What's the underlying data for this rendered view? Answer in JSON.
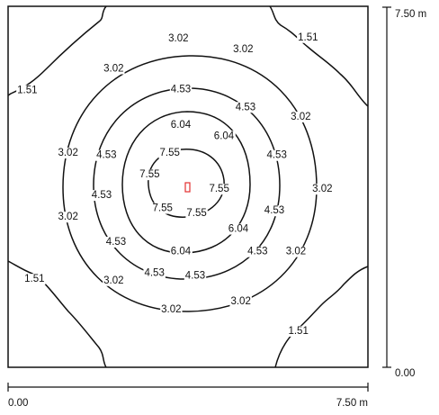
{
  "diagram": {
    "type": "isoline-plot",
    "room": {
      "width_m": 7.5,
      "depth_m": 7.5
    },
    "x_axis": {
      "start": "0.00",
      "end": "7.50 m"
    },
    "y_axis": {
      "bottom": "0.00",
      "top": "7.50 m"
    },
    "light_source": {
      "x_m": 3.75,
      "y_m": 3.75,
      "color": "#e23030"
    },
    "isolines": [
      {
        "id": "c7",
        "value": "7.55",
        "labels": [
          {
            "text": "7.55",
            "x_m": 3.37,
            "y_m": 4.45
          },
          {
            "text": "7.55",
            "x_m": 2.95,
            "y_m": 4.0
          },
          {
            "text": "7.55",
            "x_m": 4.4,
            "y_m": 3.7
          },
          {
            "text": "7.55",
            "x_m": 3.22,
            "y_m": 3.3
          },
          {
            "text": "7.55",
            "x_m": 3.93,
            "y_m": 3.2
          }
        ]
      },
      {
        "id": "c6",
        "value": "6.04",
        "labels": [
          {
            "text": "6.04",
            "x_m": 3.6,
            "y_m": 5.03
          },
          {
            "text": "6.04",
            "x_m": 4.5,
            "y_m": 4.8
          },
          {
            "text": "6.04",
            "x_m": 4.8,
            "y_m": 2.87
          },
          {
            "text": "6.04",
            "x_m": 3.6,
            "y_m": 2.4
          }
        ]
      },
      {
        "id": "c4",
        "value": "4.53",
        "labels": [
          {
            "text": "4.53",
            "x_m": 3.6,
            "y_m": 5.77
          },
          {
            "text": "4.53",
            "x_m": 4.95,
            "y_m": 5.4
          },
          {
            "text": "4.53",
            "x_m": 2.05,
            "y_m": 4.4
          },
          {
            "text": "4.53",
            "x_m": 5.6,
            "y_m": 4.4
          },
          {
            "text": "4.53",
            "x_m": 1.95,
            "y_m": 3.57
          },
          {
            "text": "4.53",
            "x_m": 5.55,
            "y_m": 3.25
          },
          {
            "text": "4.53",
            "x_m": 2.25,
            "y_m": 2.6
          },
          {
            "text": "4.53",
            "x_m": 5.2,
            "y_m": 2.4
          },
          {
            "text": "4.53",
            "x_m": 3.05,
            "y_m": 1.95
          },
          {
            "text": "4.53",
            "x_m": 3.9,
            "y_m": 1.9
          }
        ]
      },
      {
        "id": "c3",
        "value": "3.02",
        "labels": [
          {
            "text": "3.02",
            "x_m": 3.55,
            "y_m": 6.83
          },
          {
            "text": "3.02",
            "x_m": 4.9,
            "y_m": 6.6
          },
          {
            "text": "3.02",
            "x_m": 2.2,
            "y_m": 6.2
          },
          {
            "text": "3.02",
            "x_m": 6.1,
            "y_m": 5.2
          },
          {
            "text": "3.02",
            "x_m": 1.25,
            "y_m": 4.45
          },
          {
            "text": "3.02",
            "x_m": 6.55,
            "y_m": 3.7
          },
          {
            "text": "3.02",
            "x_m": 1.25,
            "y_m": 3.12
          },
          {
            "text": "3.02",
            "x_m": 6.0,
            "y_m": 2.4
          },
          {
            "text": "3.02",
            "x_m": 2.2,
            "y_m": 1.8
          },
          {
            "text": "3.02",
            "x_m": 4.85,
            "y_m": 1.37
          },
          {
            "text": "3.02",
            "x_m": 3.4,
            "y_m": 1.2
          }
        ]
      },
      {
        "id": "c1",
        "value": "1.51",
        "labels": [
          {
            "text": "1.51",
            "x_m": 6.25,
            "y_m": 6.85
          },
          {
            "text": "1.51",
            "x_m": 0.4,
            "y_m": 5.75
          },
          {
            "text": "1.51",
            "x_m": 0.55,
            "y_m": 1.83
          },
          {
            "text": "1.51",
            "x_m": 6.05,
            "y_m": 0.75
          }
        ]
      }
    ]
  }
}
